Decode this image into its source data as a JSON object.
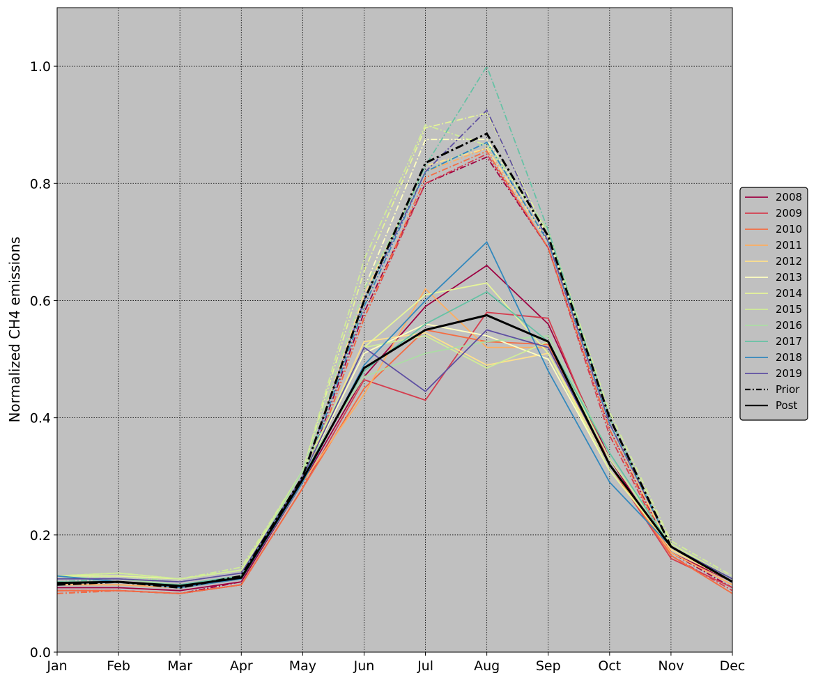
{
  "chart_data": {
    "type": "line",
    "title": "",
    "xlabel": "",
    "ylabel": "Normalized CH4 emissions",
    "categories": [
      "Jan",
      "Feb",
      "Mar",
      "Apr",
      "May",
      "Jun",
      "Jul",
      "Aug",
      "Sep",
      "Oct",
      "Nov",
      "Dec"
    ],
    "yticks": [
      "0.0",
      "0.2",
      "0.4",
      "0.6",
      "0.8",
      "1.0"
    ],
    "ylim": [
      0,
      1.1
    ],
    "grid": true,
    "legend_position": "center-right",
    "background": "#c0c0c0",
    "series": [
      {
        "name": "2008",
        "color": "#9e0142",
        "values": [
          0.11,
          0.11,
          0.105,
          0.12,
          0.29,
          0.47,
          0.59,
          0.66,
          0.56,
          0.33,
          0.17,
          0.12
        ],
        "prior": [
          0.105,
          0.105,
          0.1,
          0.12,
          0.29,
          0.58,
          0.8,
          0.845,
          0.69,
          0.38,
          0.17,
          0.11
        ]
      },
      {
        "name": "2009",
        "color": "#d53e4f",
        "values": [
          0.105,
          0.105,
          0.1,
          0.115,
          0.28,
          0.465,
          0.43,
          0.58,
          0.57,
          0.32,
          0.16,
          0.11
        ],
        "prior": [
          0.1,
          0.105,
          0.1,
          0.115,
          0.28,
          0.57,
          0.8,
          0.85,
          0.69,
          0.37,
          0.165,
          0.105
        ]
      },
      {
        "name": "2010",
        "color": "#f46d43",
        "values": [
          0.105,
          0.105,
          0.1,
          0.115,
          0.28,
          0.45,
          0.55,
          0.53,
          0.525,
          0.32,
          0.165,
          0.1
        ],
        "prior": [
          0.1,
          0.105,
          0.1,
          0.115,
          0.28,
          0.57,
          0.81,
          0.855,
          0.69,
          0.38,
          0.165,
          0.1
        ]
      },
      {
        "name": "2011",
        "color": "#fdae61",
        "values": [
          0.115,
          0.115,
          0.11,
          0.125,
          0.29,
          0.44,
          0.62,
          0.52,
          0.52,
          0.32,
          0.17,
          0.115
        ],
        "prior": [
          0.115,
          0.115,
          0.11,
          0.125,
          0.29,
          0.59,
          0.82,
          0.86,
          0.7,
          0.39,
          0.17,
          0.115
        ]
      },
      {
        "name": "2012",
        "color": "#fee08b",
        "values": [
          0.12,
          0.12,
          0.115,
          0.13,
          0.3,
          0.53,
          0.545,
          0.49,
          0.51,
          0.32,
          0.175,
          0.12
        ],
        "prior": [
          0.12,
          0.125,
          0.115,
          0.13,
          0.3,
          0.61,
          0.83,
          0.86,
          0.7,
          0.39,
          0.175,
          0.12
        ]
      },
      {
        "name": "2013",
        "color": "#ffffbf",
        "values": [
          0.125,
          0.125,
          0.12,
          0.135,
          0.3,
          0.51,
          0.56,
          0.54,
          0.5,
          0.31,
          0.18,
          0.12
        ],
        "prior": [
          0.125,
          0.13,
          0.12,
          0.135,
          0.31,
          0.62,
          0.875,
          0.875,
          0.71,
          0.4,
          0.18,
          0.12
        ]
      },
      {
        "name": "2014",
        "color": "#e6f598",
        "values": [
          0.13,
          0.13,
          0.125,
          0.14,
          0.3,
          0.52,
          0.61,
          0.63,
          0.51,
          0.31,
          0.18,
          0.125
        ],
        "prior": [
          0.13,
          0.135,
          0.125,
          0.14,
          0.31,
          0.65,
          0.895,
          0.92,
          0.71,
          0.4,
          0.185,
          0.125
        ]
      },
      {
        "name": "2015",
        "color": "#d0ec98",
        "values": [
          0.13,
          0.135,
          0.125,
          0.14,
          0.31,
          0.52,
          0.54,
          0.485,
          0.53,
          0.33,
          0.185,
          0.125
        ],
        "prior": [
          0.13,
          0.135,
          0.125,
          0.145,
          0.31,
          0.67,
          0.9,
          0.865,
          0.72,
          0.41,
          0.19,
          0.13
        ]
      },
      {
        "name": "2016",
        "color": "#abdda4",
        "values": [
          0.125,
          0.125,
          0.115,
          0.13,
          0.31,
          0.47,
          0.51,
          0.53,
          0.54,
          0.34,
          0.18,
          0.125
        ],
        "prior": [
          0.125,
          0.13,
          0.12,
          0.135,
          0.31,
          0.62,
          0.82,
          0.87,
          0.72,
          0.4,
          0.18,
          0.125
        ]
      },
      {
        "name": "2017",
        "color": "#66c2a5",
        "values": [
          0.12,
          0.12,
          0.115,
          0.13,
          0.3,
          0.48,
          0.56,
          0.615,
          0.53,
          0.34,
          0.18,
          0.125
        ],
        "prior": [
          0.12,
          0.125,
          0.115,
          0.13,
          0.3,
          0.6,
          0.83,
          1.0,
          0.72,
          0.4,
          0.18,
          0.125
        ]
      },
      {
        "name": "2018",
        "color": "#3288bd",
        "values": [
          0.13,
          0.12,
          0.11,
          0.125,
          0.29,
          0.49,
          0.6,
          0.7,
          0.48,
          0.29,
          0.18,
          0.12
        ],
        "prior": [
          0.12,
          0.12,
          0.11,
          0.125,
          0.29,
          0.59,
          0.82,
          0.87,
          0.7,
          0.39,
          0.18,
          0.12
        ]
      },
      {
        "name": "2019",
        "color": "#5e4fa2",
        "values": [
          0.125,
          0.125,
          0.12,
          0.135,
          0.3,
          0.52,
          0.445,
          0.55,
          0.52,
          0.32,
          0.18,
          0.125
        ],
        "prior": [
          0.125,
          0.125,
          0.12,
          0.135,
          0.3,
          0.6,
          0.82,
          0.925,
          0.7,
          0.39,
          0.18,
          0.12
        ]
      },
      {
        "name": "Prior",
        "color": "#000000",
        "dash": "dashdot",
        "values": [
          0.115,
          0.12,
          0.11,
          0.13,
          0.3,
          0.6,
          0.835,
          0.885,
          0.71,
          0.4,
          0.18,
          0.12
        ]
      },
      {
        "name": "Post",
        "color": "#000000",
        "dash": "solid",
        "values": [
          0.118,
          0.12,
          0.113,
          0.127,
          0.295,
          0.485,
          0.55,
          0.575,
          0.53,
          0.32,
          0.18,
          0.12
        ]
      }
    ]
  }
}
